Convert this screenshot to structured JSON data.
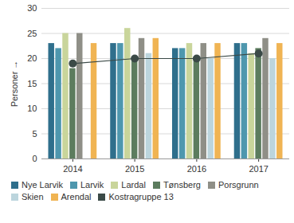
{
  "chart_data": {
    "type": "bar",
    "y_label": "Personer",
    "categories": [
      "2014",
      "2015",
      "2016",
      "2017"
    ],
    "ylim": [
      0,
      30
    ],
    "yticks": [
      0,
      5,
      10,
      15,
      20,
      25,
      30
    ],
    "grid": true,
    "legend": "bottom",
    "series": [
      {
        "name": "Nye Larvik",
        "color": "#2f6f8c",
        "values": [
          23,
          23,
          22,
          23
        ]
      },
      {
        "name": "Larvik",
        "color": "#4e97ae",
        "values": [
          22,
          23,
          22,
          23
        ]
      },
      {
        "name": "Lardal",
        "color": "#c9d59b",
        "values": [
          25,
          26,
          23,
          21
        ]
      },
      {
        "name": "Tønsberg",
        "color": "#5c7c5e",
        "values": [
          18,
          20,
          20,
          22
        ]
      },
      {
        "name": "Porsgrunn",
        "color": "#8f8f87",
        "values": [
          25,
          24,
          23,
          24
        ]
      },
      {
        "name": "Skien",
        "color": "#bcd5dd",
        "values": [
          null,
          21,
          20,
          20
        ]
      },
      {
        "name": "Arendal",
        "color": "#f0b453",
        "values": [
          23,
          24,
          23,
          23
        ]
      },
      {
        "name": "Kostragruppe 13",
        "color": "#3b4a47",
        "type": "line",
        "marker": "circle",
        "values": [
          19,
          20,
          20,
          21
        ]
      }
    ]
  }
}
